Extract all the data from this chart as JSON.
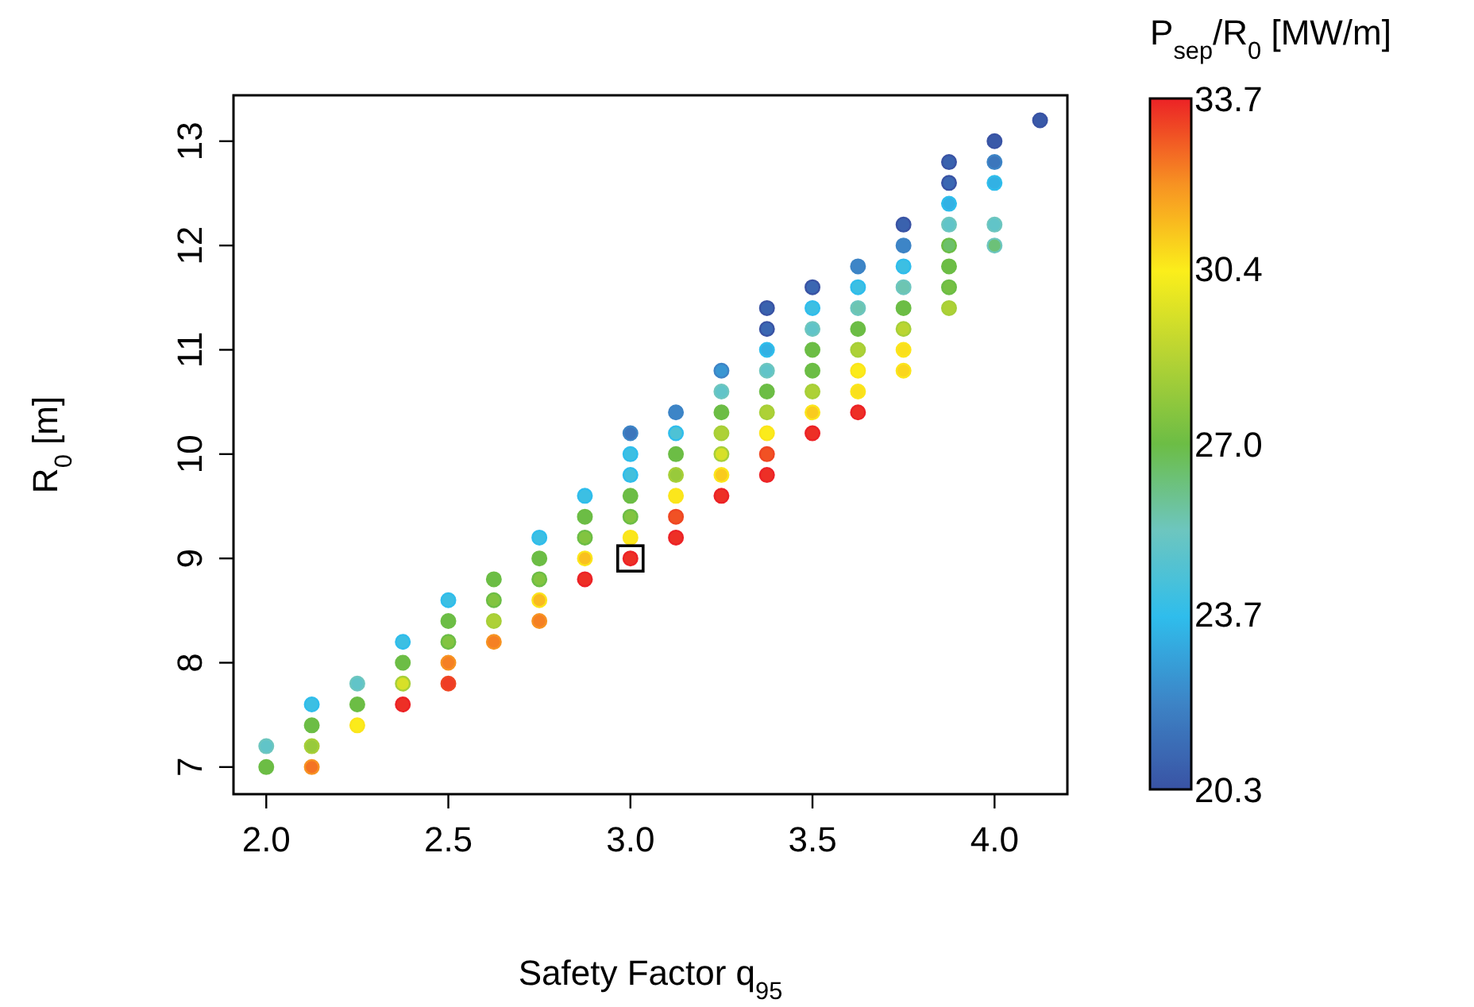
{
  "chart_data": {
    "type": "scatter",
    "xlabel": "Safety Factor q$_{95}$",
    "ylabel": "R$_{0}$ [m]",
    "clabel": "P$_{sep}$/R$_{0}$ [MW/m]",
    "xlim": [
      1.91,
      4.2
    ],
    "ylim": [
      6.74,
      13.44
    ],
    "xticks": [
      {
        "value": 2,
        "label": "2.0"
      },
      {
        "value": 2.5,
        "label": "2.5"
      },
      {
        "value": 3,
        "label": "3.0"
      },
      {
        "value": 3.5,
        "label": "3.5"
      },
      {
        "value": 4,
        "label": "4.0"
      }
    ],
    "yticks": [
      7,
      8,
      9,
      10,
      11,
      12,
      13
    ],
    "clim": [
      20.3,
      33.7
    ],
    "cticks": [
      20.3,
      23.7,
      {
        "value": 27,
        "label": "27.0"
      },
      30.4,
      33.7
    ],
    "grid": false,
    "marker": "circle",
    "series": [
      {
        "x": [
          2.0,
          2.0,
          2.125,
          2.125,
          2.125,
          2.125,
          2.25,
          2.25,
          2.25,
          2.375,
          2.375,
          2.375,
          2.375,
          2.5,
          2.5,
          2.5,
          2.5,
          2.5,
          2.625,
          2.625,
          2.625,
          2.625,
          2.75,
          2.75,
          2.75,
          2.75,
          2.75,
          2.875,
          2.875,
          2.875,
          2.875,
          2.875,
          3.0,
          3.0,
          3.0,
          3.0,
          3.0,
          3.0,
          3.0,
          3.125,
          3.125,
          3.125,
          3.125,
          3.125,
          3.125,
          3.125,
          3.25,
          3.25,
          3.25,
          3.25,
          3.25,
          3.25,
          3.25,
          3.375,
          3.375,
          3.375,
          3.375,
          3.375,
          3.375,
          3.375,
          3.375,
          3.375,
          3.5,
          3.5,
          3.5,
          3.5,
          3.5,
          3.5,
          3.5,
          3.5,
          3.625,
          3.625,
          3.625,
          3.625,
          3.625,
          3.625,
          3.625,
          3.625,
          3.75,
          3.75,
          3.75,
          3.75,
          3.75,
          3.75,
          3.75,
          3.75,
          3.875,
          3.875,
          3.875,
          3.875,
          3.875,
          3.875,
          3.875,
          3.875,
          4.0,
          4.0,
          4.0,
          4.0,
          4.0,
          4.125
        ],
        "values": [
          7.0,
          7.2,
          7.0,
          7.2,
          7.4,
          7.6,
          7.4,
          7.6,
          7.8,
          7.6,
          7.8,
          8.0,
          8.2,
          7.8,
          8.0,
          8.2,
          8.4,
          8.6,
          8.2,
          8.4,
          8.6,
          8.8,
          8.4,
          8.6,
          8.8,
          9.0,
          9.2,
          8.8,
          9.0,
          9.2,
          9.4,
          9.6,
          9.0,
          9.2,
          9.4,
          9.6,
          9.8,
          10.0,
          10.2,
          9.2,
          9.4,
          9.6,
          9.8,
          10.0,
          10.2,
          10.4,
          9.6,
          9.8,
          10.0,
          10.2,
          10.4,
          10.6,
          10.8,
          9.8,
          10.0,
          10.2,
          10.4,
          10.6,
          10.8,
          11.0,
          11.2,
          11.4,
          10.2,
          10.4,
          10.6,
          10.8,
          11.0,
          11.2,
          11.4,
          11.6,
          10.4,
          10.6,
          10.8,
          11.0,
          11.2,
          11.4,
          11.6,
          11.8,
          10.8,
          11.0,
          11.2,
          11.4,
          11.6,
          11.8,
          12.0,
          12.2,
          11.4,
          11.6,
          11.8,
          12.0,
          12.2,
          12.4,
          12.6,
          12.8,
          12.0,
          12.2,
          12.6,
          12.8,
          13.0,
          13.2
        ],
        "cvalues": [
          27,
          25,
          32.5,
          28,
          27,
          24,
          30.4,
          27,
          25,
          33.5,
          29.5,
          27,
          24,
          33.3,
          32.3,
          27.5,
          27,
          24,
          32.3,
          28.5,
          27.5,
          27,
          32.3,
          31.3,
          27.5,
          27,
          24,
          33.5,
          31.2,
          27.5,
          27,
          24,
          33.5,
          30.5,
          27.5,
          27,
          24.2,
          24,
          21.5,
          33.5,
          33,
          30.5,
          28,
          27,
          24.5,
          22,
          33.5,
          31,
          29.5,
          28.5,
          27,
          25,
          22.5,
          33.5,
          33,
          30.4,
          28.5,
          27,
          25,
          23.3,
          21,
          20.8,
          33.5,
          31,
          28.5,
          27,
          27,
          25,
          24,
          21,
          33.5,
          30.6,
          30.4,
          28.5,
          27,
          25.5,
          24,
          22,
          30.8,
          30.6,
          28.8,
          27,
          25.5,
          24,
          22,
          20.8,
          28.5,
          27.2,
          27,
          26.5,
          25,
          23.3,
          21,
          20.8,
          26.3,
          25,
          23.3,
          21.5,
          20.5,
          20.5
        ],
        "colors": [
          "#6cbd45",
          "#6dc6bf",
          "#f79322",
          "#a7cf38",
          "#6cbd45",
          "#2fbdec",
          "#fbe51b",
          "#6cbd45",
          "#6dc6bf",
          "#ec2226",
          "#a7cf38",
          "#6cbd45",
          "#2fbdec",
          "#ef4623",
          "#f79322",
          "#6cbd45",
          "#6cbd45",
          "#2fbdec",
          "#f79322",
          "#a7cf38",
          "#6cbd45",
          "#6cbd45",
          "#f79322",
          "#fbe51b",
          "#6cbd45",
          "#6cbd45",
          "#2fbdec",
          "#ec2226",
          "#fbe51b",
          "#6cbd45",
          "#6cbd45",
          "#2fbdec",
          "#ec2226",
          "#fbe51b",
          "#6cbd45",
          "#6cbd45",
          "#2fbdec",
          "#2fbdec",
          "#3d84c6",
          "#ec2226",
          "#ef4623",
          "#fbe51b",
          "#a7cf38",
          "#6cbd45",
          "#2fbdec",
          "#3d84c6",
          "#ec2226",
          "#fbe51b",
          "#a7cf38",
          "#a7cf38",
          "#6cbd45",
          "#6dc6bf",
          "#3d84c6",
          "#ec2226",
          "#ef4623",
          "#fbe51b",
          "#a7cf38",
          "#6cbd45",
          "#6dc6bf",
          "#2fbdec",
          "#3953a4",
          "#3953a4",
          "#ec2226",
          "#fbe51b",
          "#a7cf38",
          "#6cbd45",
          "#6cbd45",
          "#6dc6bf",
          "#2fbdec",
          "#3953a4",
          "#ec2226",
          "#fbe51b",
          "#fbe51b",
          "#a7cf38",
          "#6cbd45",
          "#6dc6bf",
          "#2fbdec",
          "#3d84c6",
          "#fbe51b",
          "#fbe51b",
          "#a7cf38",
          "#6cbd45",
          "#6dc6bf",
          "#2fbdec",
          "#3d84c6",
          "#3953a4",
          "#a7cf38",
          "#6cbd45",
          "#6cbd45",
          "#6cbd45",
          "#6dc6bf",
          "#2fbdec",
          "#3953a4",
          "#3953a4",
          "#6dc6bf",
          "#6dc6bf",
          "#2fbdec",
          "#3d84c6",
          "#3953a4",
          "#3953a4"
        ]
      },
      {
        "x": [
          3.0
        ],
        "values": [
          9.0
        ],
        "marker": "square",
        "color": "#000000"
      }
    ]
  }
}
